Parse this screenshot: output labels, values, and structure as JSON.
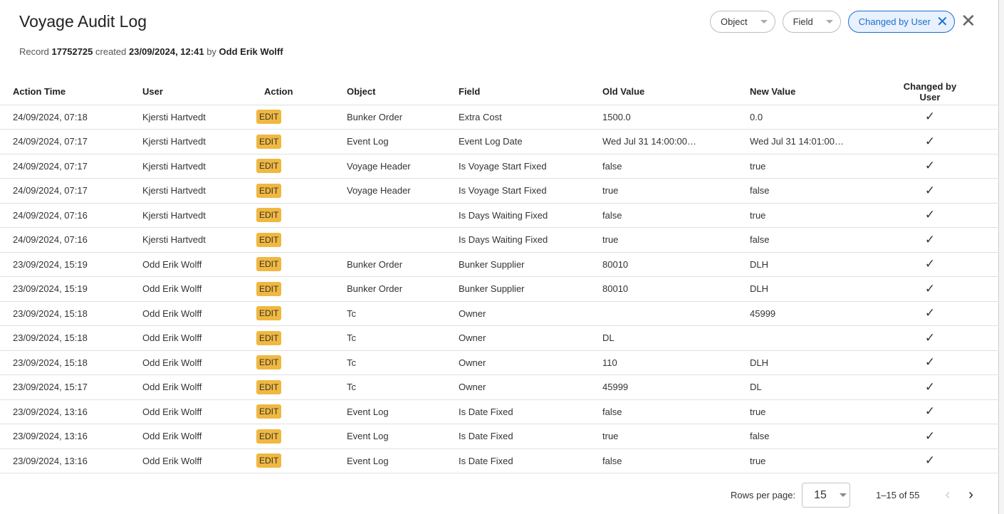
{
  "title": "Voyage Audit Log",
  "subtitle": {
    "record_label": "Record",
    "record_id": "17752725",
    "created_label": "created",
    "created_at": "23/09/2024, 12:41",
    "by_label": "by",
    "created_by": "Odd Erik Wolff"
  },
  "filters": [
    {
      "label": "Object",
      "active": false
    },
    {
      "label": "Field",
      "active": false
    },
    {
      "label": "Changed by User",
      "active": true
    }
  ],
  "colors": {
    "accent": "#1a6fd1",
    "badge": "#f0b840"
  },
  "columns": [
    "Action Time",
    "User",
    "Action",
    "Object",
    "Field",
    "Old Value",
    "New Value",
    "Changed by User"
  ],
  "rows": [
    [
      "24/09/2024, 07:18",
      "Kjersti Hartvedt",
      "EDIT",
      "Bunker Order",
      "Extra Cost",
      "1500.0",
      "0.0",
      true
    ],
    [
      "24/09/2024, 07:17",
      "Kjersti Hartvedt",
      "EDIT",
      "Event Log",
      "Event Log Date",
      "Wed Jul 31 14:00:00…",
      "Wed Jul 31 14:01:00…",
      true
    ],
    [
      "24/09/2024, 07:17",
      "Kjersti Hartvedt",
      "EDIT",
      "Voyage Header",
      "Is Voyage Start Fixed",
      "false",
      "true",
      true
    ],
    [
      "24/09/2024, 07:17",
      "Kjersti Hartvedt",
      "EDIT",
      "Voyage Header",
      "Is Voyage Start Fixed",
      "true",
      "false",
      true
    ],
    [
      "24/09/2024, 07:16",
      "Kjersti Hartvedt",
      "EDIT",
      "",
      "Is Days Waiting Fixed",
      "false",
      "true",
      true
    ],
    [
      "24/09/2024, 07:16",
      "Kjersti Hartvedt",
      "EDIT",
      "",
      "Is Days Waiting Fixed",
      "true",
      "false",
      true
    ],
    [
      "23/09/2024, 15:19",
      "Odd Erik Wolff",
      "EDIT",
      "Bunker Order",
      "Bunker Supplier",
      "80010",
      "DLH",
      true
    ],
    [
      "23/09/2024, 15:19",
      "Odd Erik Wolff",
      "EDIT",
      "Bunker Order",
      "Bunker Supplier",
      "80010",
      "DLH",
      true
    ],
    [
      "23/09/2024, 15:18",
      "Odd Erik Wolff",
      "EDIT",
      "Tc",
      "Owner",
      "",
      "45999",
      true
    ],
    [
      "23/09/2024, 15:18",
      "Odd Erik Wolff",
      "EDIT",
      "Tc",
      "Owner",
      "DL",
      "",
      true
    ],
    [
      "23/09/2024, 15:18",
      "Odd Erik Wolff",
      "EDIT",
      "Tc",
      "Owner",
      "110",
      "DLH",
      true
    ],
    [
      "23/09/2024, 15:17",
      "Odd Erik Wolff",
      "EDIT",
      "Tc",
      "Owner",
      "45999",
      "DL",
      true
    ],
    [
      "23/09/2024, 13:16",
      "Odd Erik Wolff",
      "EDIT",
      "Event Log",
      "Is Date Fixed",
      "false",
      "true",
      true
    ],
    [
      "23/09/2024, 13:16",
      "Odd Erik Wolff",
      "EDIT",
      "Event Log",
      "Is Date Fixed",
      "true",
      "false",
      true
    ],
    [
      "23/09/2024, 13:16",
      "Odd Erik Wolff",
      "EDIT",
      "Event Log",
      "Is Date Fixed",
      "false",
      "true",
      true
    ]
  ],
  "pagination": {
    "rows_per_page_label": "Rows per page:",
    "rows_per_page": "15",
    "range": "1–15 of 55"
  }
}
